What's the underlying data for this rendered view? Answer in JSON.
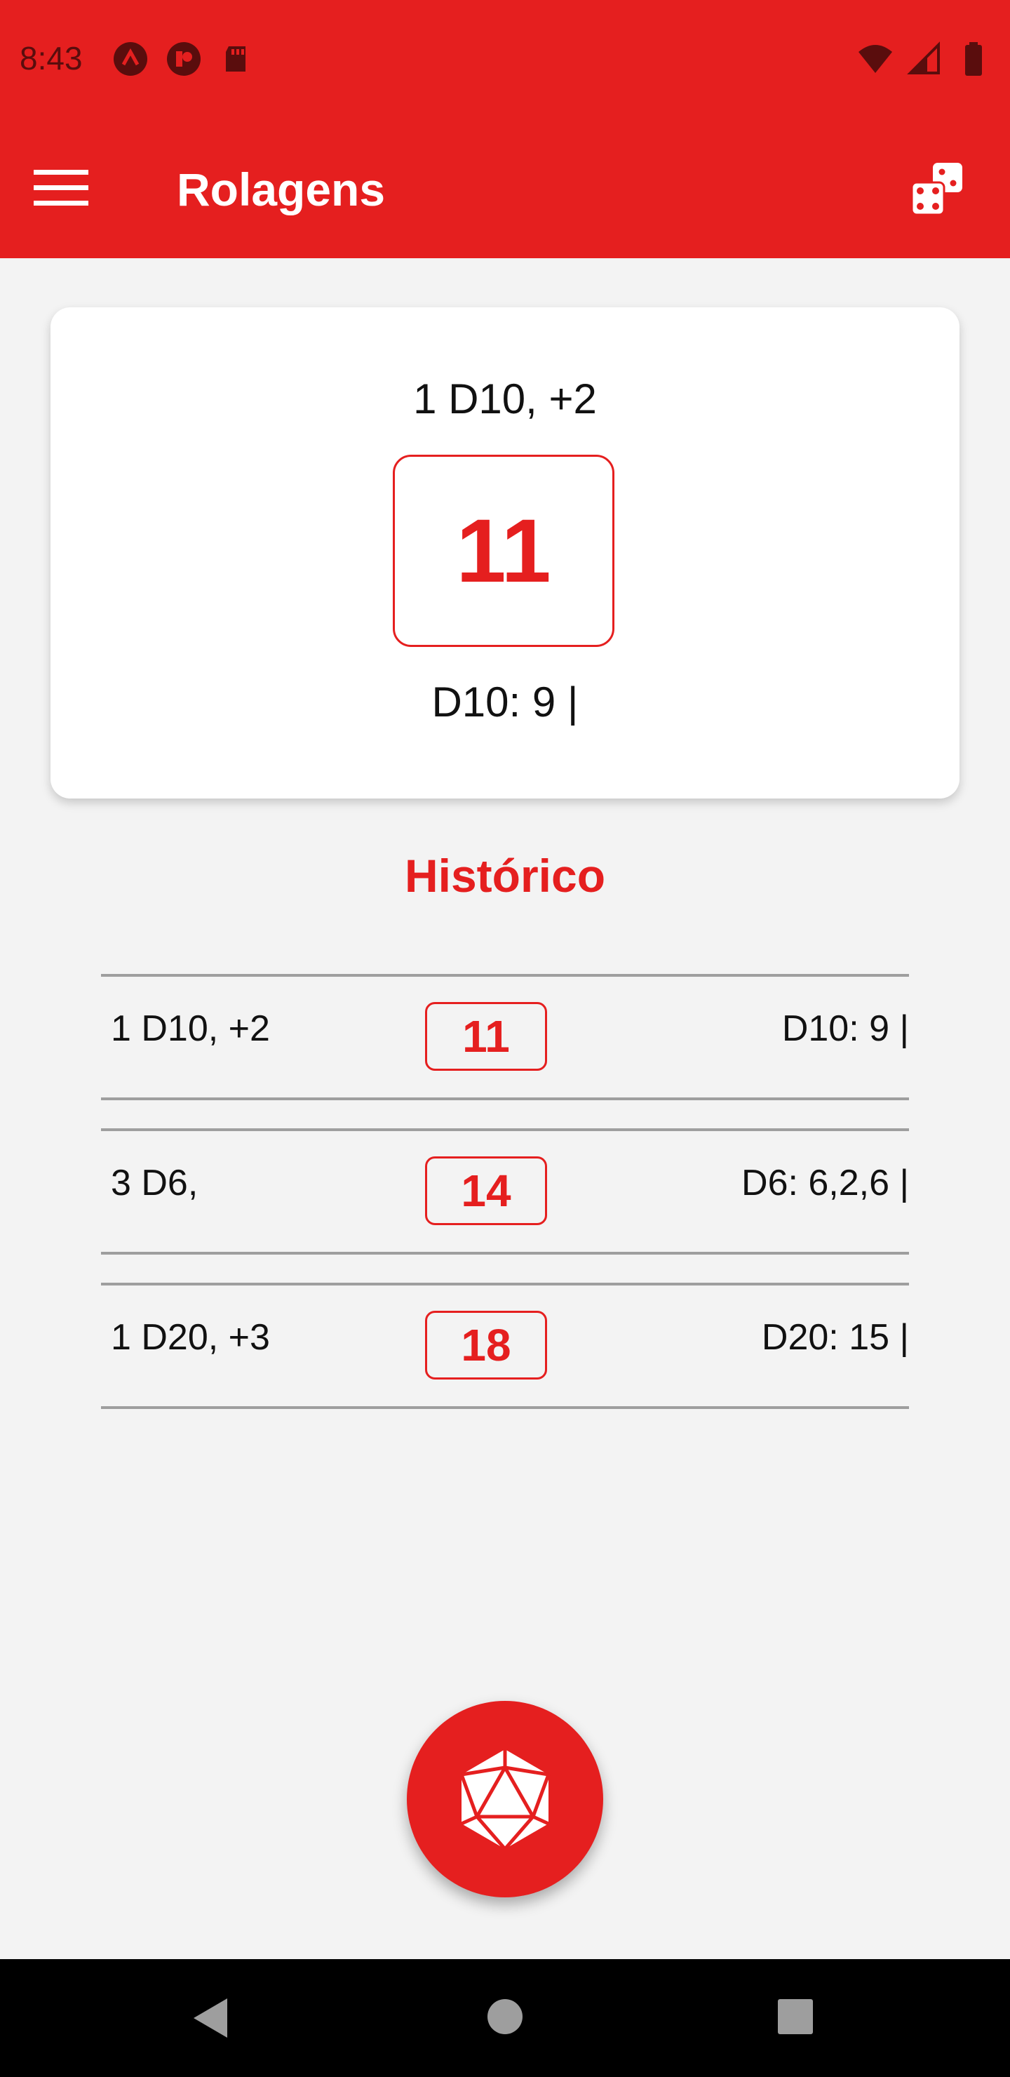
{
  "status_bar": {
    "time": "8:43",
    "left_icons": [
      "app-notification-icon",
      "record-notification-icon",
      "sd-card-icon"
    ],
    "right_icons": [
      "wifi-icon",
      "cell-signal-icon",
      "battery-icon"
    ]
  },
  "app_bar": {
    "title": "Rolagens",
    "menu_icon": "hamburger-menu-icon",
    "action_icon": "dice-icon"
  },
  "current_roll": {
    "formula": "1 D10, +2",
    "result": "11",
    "detail": "D10: 9 |"
  },
  "history": {
    "title": "Histórico",
    "rows": [
      {
        "formula": "1 D10, +2",
        "result": "11",
        "detail": "D10: 9 |"
      },
      {
        "formula": "3 D6,",
        "result": "14",
        "detail": "D6: 6,2,6 |"
      },
      {
        "formula": "1 D20, +3",
        "result": "18",
        "detail": "D20: 15 |"
      }
    ]
  },
  "fab": {
    "icon": "d20-icon"
  },
  "colors": {
    "accent": "#e51f1f",
    "background": "#f3f3f3",
    "divider": "#9e9e9e"
  }
}
